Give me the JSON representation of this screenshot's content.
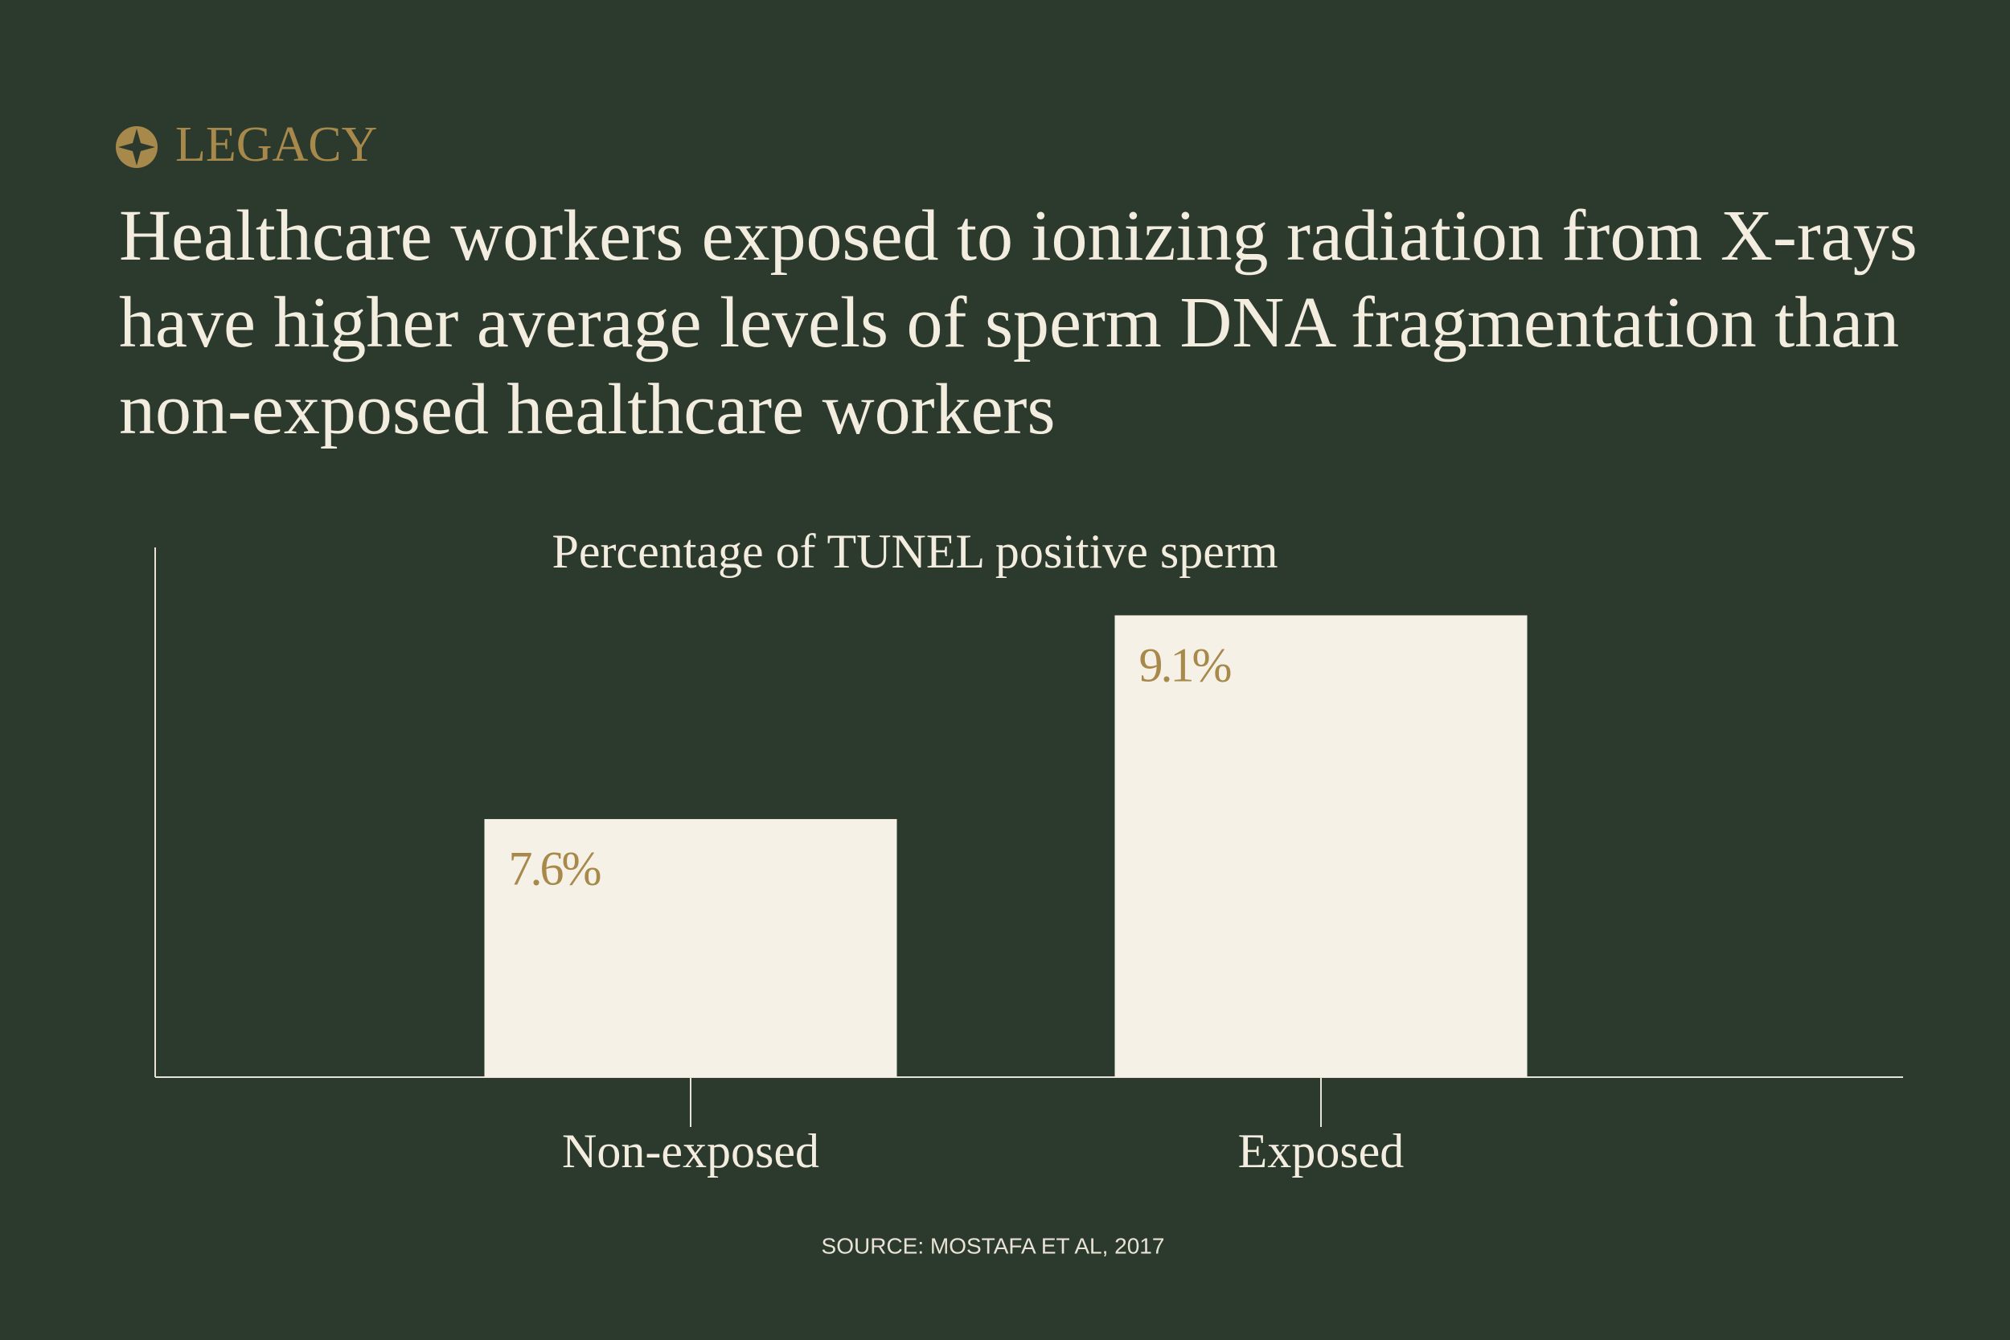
{
  "brand": "LEGACY",
  "chart_data": {
    "type": "bar",
    "title": "Healthcare workers exposed to ionizing radiation from X-rays have higher average levels of sperm DNA fragmentation than non-exposed healthcare workers",
    "subtitle": "Percentage of TUNEL positive sperm",
    "categories": [
      "Non-exposed",
      "Exposed"
    ],
    "values": [
      7.6,
      9.1
    ],
    "value_labels": [
      "7.6%",
      "9.1%"
    ],
    "color": "#f6f1e6",
    "label_color": "#a8894c",
    "ylim": [
      5.7,
      9.6
    ],
    "source": "SOURCE: MOSTAFA ET AL, 2017"
  }
}
